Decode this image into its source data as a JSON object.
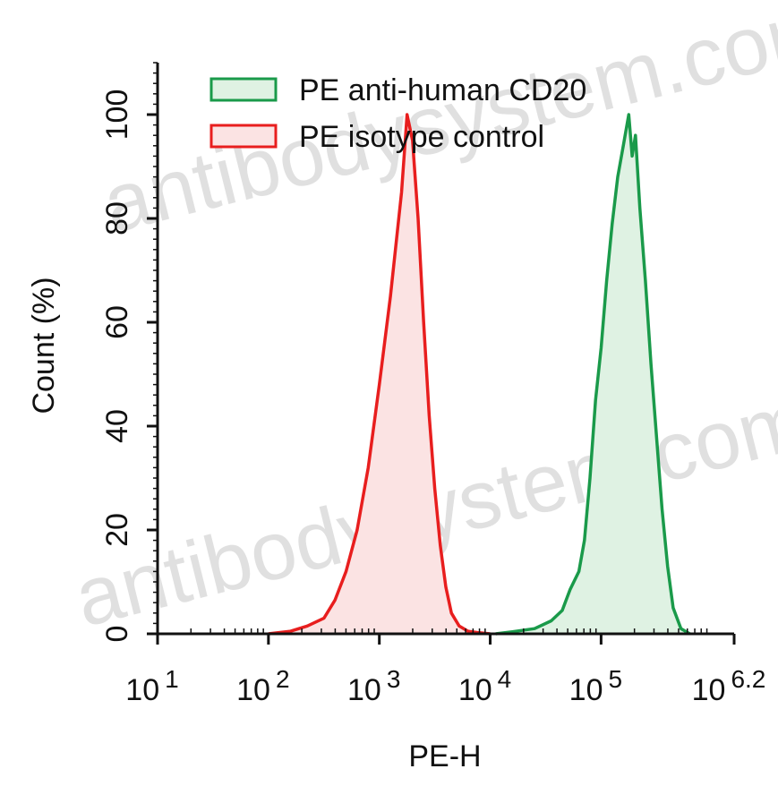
{
  "chart_data": {
    "type": "area",
    "title": "",
    "xlabel": "PE-H",
    "ylabel": "Count  (%)",
    "xscale": "log10",
    "xlim_exponent": [
      1,
      6.2
    ],
    "ylim": [
      0,
      110
    ],
    "x_tick_bases": [
      "10",
      "10",
      "10",
      "10",
      "10",
      "10"
    ],
    "x_tick_exponents": [
      "1",
      "2",
      "3",
      "4",
      "5",
      "6.2"
    ],
    "y_ticks": [
      "0",
      "20",
      "40",
      "60",
      "80",
      "100"
    ],
    "legend_position": "top",
    "watermark": "antibodysystem.com",
    "series": [
      {
        "name": "PE anti-human CD20",
        "color": "#1a9a4a",
        "fill": "#dff2e3",
        "x_log10": [
          4.05,
          4.2,
          4.4,
          4.55,
          4.65,
          4.72,
          4.8,
          4.85,
          4.9,
          4.95,
          5.0,
          5.05,
          5.1,
          5.15,
          5.2,
          5.25,
          5.28,
          5.31,
          5.35,
          5.4,
          5.45,
          5.5,
          5.55,
          5.6,
          5.65,
          5.72,
          5.8
        ],
        "y": [
          0,
          0.4,
          1.0,
          2.5,
          4.5,
          8.5,
          12,
          18,
          30,
          45,
          55,
          68,
          79,
          88,
          94,
          100,
          92,
          96,
          82,
          68,
          52,
          38,
          24,
          13,
          5,
          1.0,
          0
        ]
      },
      {
        "name": "PE isotype control",
        "color": "#e81e1e",
        "fill": "#fbe3e3",
        "x_log10": [
          2.0,
          2.2,
          2.35,
          2.5,
          2.6,
          2.7,
          2.8,
          2.9,
          3.0,
          3.1,
          3.2,
          3.25,
          3.3,
          3.35,
          3.4,
          3.45,
          3.5,
          3.55,
          3.6,
          3.65,
          3.72,
          3.8,
          3.9,
          4.0
        ],
        "y": [
          0,
          0.5,
          1.5,
          3.0,
          6.5,
          12,
          20,
          32,
          48,
          65,
          85,
          100,
          95,
          80,
          60,
          42,
          28,
          17,
          9,
          4,
          1.5,
          0.5,
          0.2,
          0
        ]
      }
    ]
  }
}
